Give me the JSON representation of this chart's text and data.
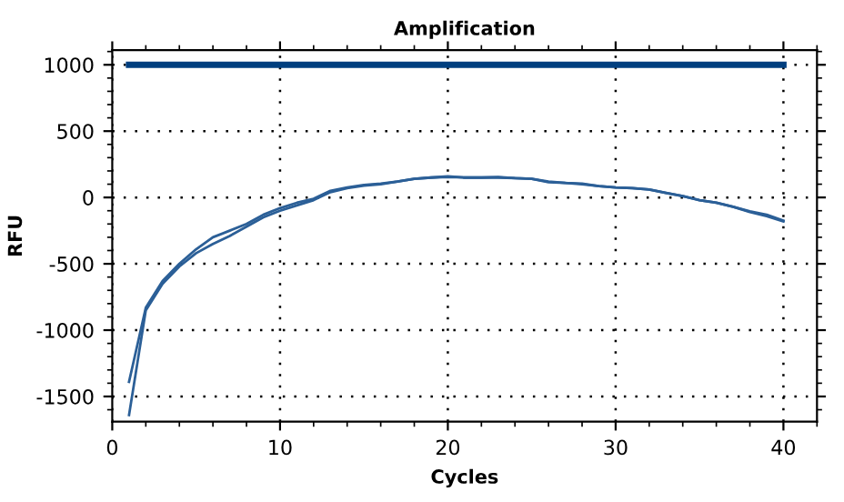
{
  "chart_data": {
    "type": "line",
    "title": "Amplification",
    "xlabel": "Cycles",
    "ylabel": "RFU",
    "x": [
      1,
      2,
      3,
      4,
      5,
      6,
      7,
      8,
      9,
      10,
      11,
      12,
      13,
      14,
      15,
      16,
      17,
      18,
      19,
      20,
      21,
      22,
      23,
      24,
      25,
      26,
      27,
      28,
      29,
      30,
      31,
      32,
      33,
      34,
      35,
      36,
      37,
      38,
      39,
      40
    ],
    "series": [
      {
        "color": "#2b5f97",
        "values": [
          -1640,
          -850,
          -650,
          -520,
          -420,
          -350,
          -290,
          -220,
          -150,
          -100,
          -60,
          -20,
          40,
          70,
          90,
          100,
          120,
          140,
          150,
          155,
          150,
          150,
          150,
          145,
          140,
          115,
          110,
          100,
          85,
          75,
          70,
          60,
          35,
          10,
          -20,
          -40,
          -70,
          -110,
          -140,
          -180
        ]
      },
      {
        "color": "#2b5f97",
        "values": [
          -1390,
          -830,
          -630,
          -500,
          -390,
          -300,
          -250,
          -200,
          -130,
          -80,
          -40,
          -10,
          50,
          75,
          95,
          105,
          120,
          140,
          150,
          160,
          150,
          150,
          155,
          145,
          140,
          120,
          110,
          105,
          85,
          75,
          70,
          60,
          35,
          10,
          -20,
          -40,
          -70,
          -105,
          -130,
          -175
        ]
      },
      {
        "color": "#003f7f",
        "x": [
          1,
          40
        ],
        "values": [
          1000,
          1000
        ]
      }
    ],
    "xlim": [
      0,
      42
    ],
    "ylim": [
      -1690,
      1110
    ],
    "xticks": [
      0,
      10,
      20,
      30,
      40
    ],
    "yticks": [
      -1500,
      -1000,
      -500,
      0,
      500,
      1000
    ],
    "grid": true,
    "marker": "none",
    "line_style": "solid"
  }
}
